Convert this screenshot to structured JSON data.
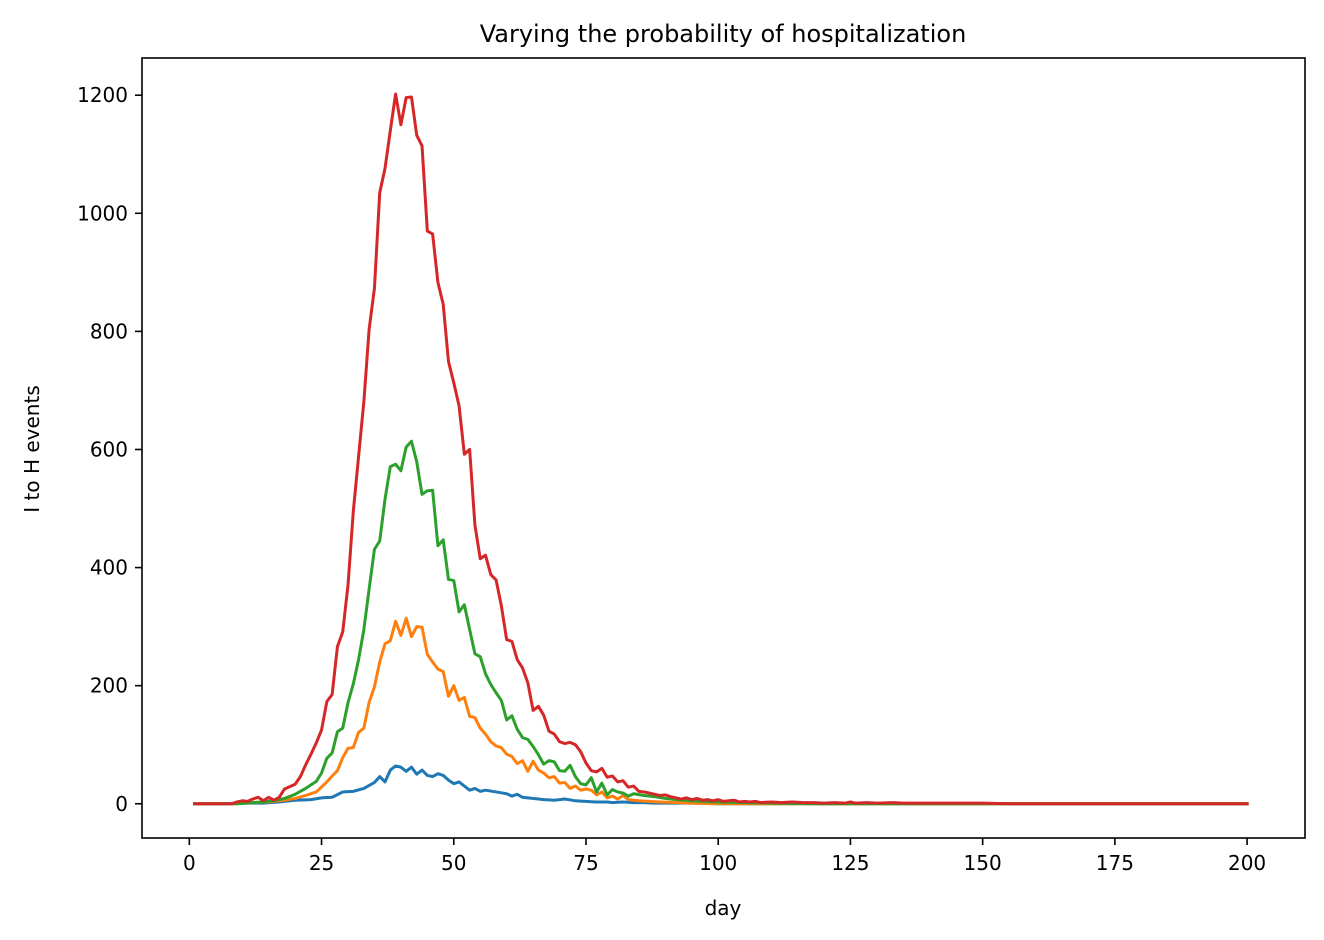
{
  "chart_data": {
    "type": "line",
    "title": "Varying the probability of hospitalization",
    "xlabel": "day",
    "ylabel": "I to H events",
    "xlim": [
      -8.95,
      210.95
    ],
    "ylim": [
      -58,
      1263
    ],
    "xticks": [
      0,
      25,
      50,
      75,
      100,
      125,
      150,
      175,
      200
    ],
    "yticks": [
      0,
      200,
      400,
      600,
      800,
      1000,
      1200
    ],
    "grid": false,
    "legend": "none",
    "x_range": [
      1,
      200
    ],
    "series": [
      {
        "name": "series 1",
        "color": "#1f77b4",
        "points": [
          [
            1,
            0
          ],
          [
            7,
            0
          ],
          [
            10,
            1
          ],
          [
            14,
            1
          ],
          [
            17,
            3
          ],
          [
            20,
            6
          ],
          [
            23,
            7
          ],
          [
            25,
            10
          ],
          [
            27,
            11
          ],
          [
            29,
            20
          ],
          [
            31,
            21
          ],
          [
            33,
            26
          ],
          [
            35,
            36
          ],
          [
            36,
            46
          ],
          [
            37,
            37
          ],
          [
            38,
            57
          ],
          [
            39,
            64
          ],
          [
            40,
            62
          ],
          [
            41,
            55
          ],
          [
            42,
            62
          ],
          [
            43,
            50
          ],
          [
            44,
            57
          ],
          [
            45,
            48
          ],
          [
            46,
            46
          ],
          [
            47,
            51
          ],
          [
            48,
            48
          ],
          [
            49,
            40
          ],
          [
            50,
            34
          ],
          [
            51,
            37
          ],
          [
            52,
            30
          ],
          [
            53,
            23
          ],
          [
            54,
            26
          ],
          [
            55,
            21
          ],
          [
            56,
            23
          ],
          [
            58,
            20
          ],
          [
            60,
            17
          ],
          [
            61,
            13
          ],
          [
            62,
            16
          ],
          [
            63,
            11
          ],
          [
            65,
            9
          ],
          [
            67,
            7
          ],
          [
            69,
            6
          ],
          [
            71,
            8
          ],
          [
            73,
            5
          ],
          [
            75,
            4
          ],
          [
            77,
            3
          ],
          [
            79,
            3
          ],
          [
            80,
            2
          ],
          [
            82,
            3
          ],
          [
            84,
            2
          ],
          [
            86,
            2
          ],
          [
            88,
            1
          ],
          [
            90,
            1
          ],
          [
            95,
            1
          ],
          [
            100,
            0
          ],
          [
            200,
            0
          ]
        ]
      },
      {
        "name": "series 2",
        "color": "#ff7f0e",
        "points": [
          [
            1,
            0
          ],
          [
            9,
            0
          ],
          [
            12,
            2
          ],
          [
            15,
            3
          ],
          [
            18,
            6
          ],
          [
            20,
            9
          ],
          [
            22,
            14
          ],
          [
            24,
            20
          ],
          [
            26,
            37
          ],
          [
            27,
            47
          ],
          [
            28,
            56
          ],
          [
            29,
            78
          ],
          [
            30,
            94
          ],
          [
            31,
            95
          ],
          [
            32,
            121
          ],
          [
            33,
            128
          ],
          [
            34,
            172
          ],
          [
            35,
            198
          ],
          [
            36,
            240
          ],
          [
            37,
            271
          ],
          [
            38,
            276
          ],
          [
            39,
            309
          ],
          [
            40,
            285
          ],
          [
            41,
            314
          ],
          [
            42,
            283
          ],
          [
            43,
            300
          ],
          [
            44,
            299
          ],
          [
            45,
            253
          ],
          [
            46,
            240
          ],
          [
            47,
            228
          ],
          [
            48,
            224
          ],
          [
            49,
            182
          ],
          [
            50,
            200
          ],
          [
            51,
            175
          ],
          [
            52,
            180
          ],
          [
            53,
            148
          ],
          [
            54,
            146
          ],
          [
            55,
            128
          ],
          [
            56,
            118
          ],
          [
            57,
            105
          ],
          [
            58,
            98
          ],
          [
            59,
            95
          ],
          [
            60,
            84
          ],
          [
            61,
            80
          ],
          [
            62,
            68
          ],
          [
            63,
            73
          ],
          [
            64,
            55
          ],
          [
            65,
            72
          ],
          [
            66,
            57
          ],
          [
            67,
            52
          ],
          [
            68,
            44
          ],
          [
            69,
            46
          ],
          [
            70,
            35
          ],
          [
            71,
            36
          ],
          [
            72,
            26
          ],
          [
            73,
            30
          ],
          [
            74,
            23
          ],
          [
            75,
            25
          ],
          [
            76,
            23
          ],
          [
            77,
            15
          ],
          [
            78,
            20
          ],
          [
            79,
            10
          ],
          [
            80,
            13
          ],
          [
            81,
            8
          ],
          [
            82,
            14
          ],
          [
            83,
            7
          ],
          [
            85,
            5
          ],
          [
            87,
            4
          ],
          [
            89,
            3
          ],
          [
            92,
            2
          ],
          [
            95,
            1
          ],
          [
            100,
            0
          ],
          [
            200,
            0
          ]
        ]
      },
      {
        "name": "series 3",
        "color": "#2ca02c",
        "points": [
          [
            1,
            0
          ],
          [
            9,
            0
          ],
          [
            12,
            2
          ],
          [
            14,
            3
          ],
          [
            16,
            5
          ],
          [
            18,
            9
          ],
          [
            20,
            16
          ],
          [
            22,
            26
          ],
          [
            24,
            38
          ],
          [
            25,
            52
          ],
          [
            26,
            77
          ],
          [
            27,
            86
          ],
          [
            28,
            122
          ],
          [
            29,
            128
          ],
          [
            30,
            171
          ],
          [
            31,
            203
          ],
          [
            32,
            244
          ],
          [
            33,
            295
          ],
          [
            34,
            364
          ],
          [
            35,
            431
          ],
          [
            36,
            445
          ],
          [
            37,
            516
          ],
          [
            38,
            571
          ],
          [
            39,
            575
          ],
          [
            40,
            564
          ],
          [
            41,
            604
          ],
          [
            42,
            614
          ],
          [
            43,
            579
          ],
          [
            44,
            524
          ],
          [
            45,
            530
          ],
          [
            46,
            531
          ],
          [
            47,
            437
          ],
          [
            48,
            447
          ],
          [
            49,
            380
          ],
          [
            50,
            378
          ],
          [
            51,
            325
          ],
          [
            52,
            337
          ],
          [
            53,
            295
          ],
          [
            54,
            254
          ],
          [
            55,
            249
          ],
          [
            56,
            220
          ],
          [
            57,
            202
          ],
          [
            58,
            188
          ],
          [
            59,
            175
          ],
          [
            60,
            142
          ],
          [
            61,
            149
          ],
          [
            62,
            126
          ],
          [
            63,
            112
          ],
          [
            64,
            109
          ],
          [
            65,
            97
          ],
          [
            66,
            83
          ],
          [
            67,
            67
          ],
          [
            68,
            73
          ],
          [
            69,
            71
          ],
          [
            70,
            56
          ],
          [
            71,
            55
          ],
          [
            72,
            65
          ],
          [
            73,
            46
          ],
          [
            74,
            34
          ],
          [
            75,
            32
          ],
          [
            76,
            44
          ],
          [
            77,
            20
          ],
          [
            78,
            35
          ],
          [
            79,
            15
          ],
          [
            80,
            24
          ],
          [
            81,
            20
          ],
          [
            82,
            18
          ],
          [
            83,
            13
          ],
          [
            84,
            17
          ],
          [
            86,
            14
          ],
          [
            88,
            12
          ],
          [
            90,
            9
          ],
          [
            92,
            7
          ],
          [
            95,
            5
          ],
          [
            100,
            3
          ],
          [
            105,
            2
          ],
          [
            110,
            1
          ],
          [
            120,
            0
          ],
          [
            200,
            0
          ]
        ]
      },
      {
        "name": "series 4",
        "color": "#d62728",
        "points": [
          [
            1,
            0
          ],
          [
            8,
            0
          ],
          [
            9,
            3
          ],
          [
            10,
            5
          ],
          [
            11,
            4
          ],
          [
            12,
            8
          ],
          [
            13,
            11
          ],
          [
            14,
            5
          ],
          [
            15,
            11
          ],
          [
            16,
            6
          ],
          [
            17,
            11
          ],
          [
            18,
            25
          ],
          [
            19,
            29
          ],
          [
            20,
            33
          ],
          [
            21,
            46
          ],
          [
            22,
            66
          ],
          [
            23,
            84
          ],
          [
            24,
            103
          ],
          [
            25,
            125
          ],
          [
            26,
            173
          ],
          [
            27,
            185
          ],
          [
            28,
            266
          ],
          [
            29,
            291
          ],
          [
            30,
            370
          ],
          [
            31,
            495
          ],
          [
            32,
            588
          ],
          [
            33,
            681
          ],
          [
            34,
            804
          ],
          [
            35,
            873
          ],
          [
            36,
            1035
          ],
          [
            37,
            1076
          ],
          [
            38,
            1140
          ],
          [
            39,
            1202
          ],
          [
            40,
            1150
          ],
          [
            41,
            1196
          ],
          [
            42,
            1197
          ],
          [
            43,
            1132
          ],
          [
            44,
            1114
          ],
          [
            45,
            970
          ],
          [
            46,
            965
          ],
          [
            47,
            883
          ],
          [
            48,
            846
          ],
          [
            49,
            749
          ],
          [
            50,
            713
          ],
          [
            51,
            674
          ],
          [
            52,
            592
          ],
          [
            53,
            600
          ],
          [
            54,
            472
          ],
          [
            55,
            415
          ],
          [
            56,
            421
          ],
          [
            57,
            388
          ],
          [
            58,
            379
          ],
          [
            59,
            335
          ],
          [
            60,
            278
          ],
          [
            61,
            275
          ],
          [
            62,
            244
          ],
          [
            63,
            230
          ],
          [
            64,
            205
          ],
          [
            65,
            158
          ],
          [
            66,
            165
          ],
          [
            67,
            150
          ],
          [
            68,
            123
          ],
          [
            69,
            118
          ],
          [
            70,
            105
          ],
          [
            71,
            102
          ],
          [
            72,
            104
          ],
          [
            73,
            100
          ],
          [
            74,
            88
          ],
          [
            75,
            69
          ],
          [
            76,
            56
          ],
          [
            77,
            54
          ],
          [
            78,
            60
          ],
          [
            79,
            45
          ],
          [
            80,
            47
          ],
          [
            81,
            37
          ],
          [
            82,
            39
          ],
          [
            83,
            28
          ],
          [
            84,
            30
          ],
          [
            85,
            21
          ],
          [
            86,
            20
          ],
          [
            87,
            18
          ],
          [
            88,
            16
          ],
          [
            89,
            14
          ],
          [
            90,
            15
          ],
          [
            91,
            12
          ],
          [
            92,
            10
          ],
          [
            93,
            8
          ],
          [
            94,
            10
          ],
          [
            95,
            7
          ],
          [
            96,
            9
          ],
          [
            97,
            6
          ],
          [
            98,
            7
          ],
          [
            99,
            5
          ],
          [
            100,
            7
          ],
          [
            101,
            4
          ],
          [
            102,
            5
          ],
          [
            103,
            6
          ],
          [
            104,
            3
          ],
          [
            105,
            4
          ],
          [
            106,
            3
          ],
          [
            107,
            4
          ],
          [
            108,
            2
          ],
          [
            110,
            3
          ],
          [
            112,
            2
          ],
          [
            114,
            3
          ],
          [
            116,
            2
          ],
          [
            118,
            2
          ],
          [
            120,
            1
          ],
          [
            122,
            2
          ],
          [
            124,
            1
          ],
          [
            125,
            3
          ],
          [
            126,
            1
          ],
          [
            128,
            2
          ],
          [
            130,
            1
          ],
          [
            133,
            2
          ],
          [
            135,
            1
          ],
          [
            140,
            1
          ],
          [
            145,
            1
          ],
          [
            150,
            1
          ],
          [
            155,
            0
          ],
          [
            200,
            0
          ]
        ]
      }
    ]
  }
}
